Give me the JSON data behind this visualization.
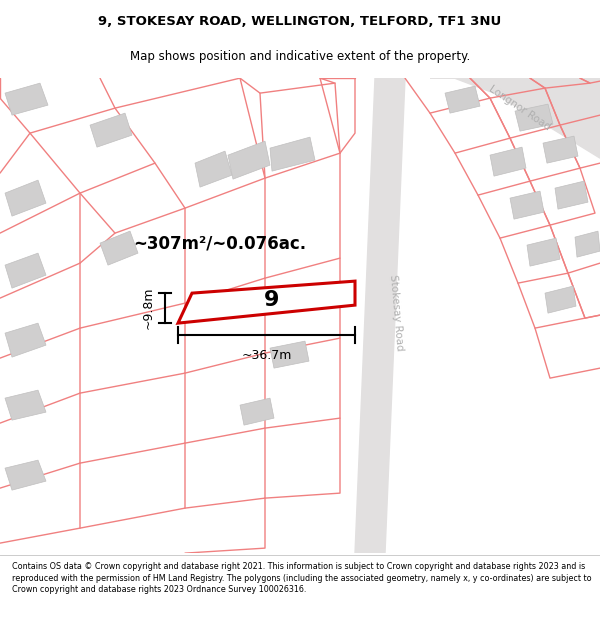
{
  "title": "9, STOKESAY ROAD, WELLINGTON, TELFORD, TF1 3NU",
  "subtitle": "Map shows position and indicative extent of the property.",
  "footer": "Contains OS data © Crown copyright and database right 2021. This information is subject to Crown copyright and database rights 2023 and is reproduced with the permission of HM Land Registry. The polygons (including the associated geometry, namely x, y co-ordinates) are subject to Crown copyright and database rights 2023 Ordnance Survey 100026316.",
  "bg_color": "#f7f5f5",
  "road_fill": "#e2e0e0",
  "building_fill": "#d0cfcf",
  "pink_line": "#f08080",
  "red_outline": "#cc0000",
  "area_text": "~307m²/~0.076ac.",
  "width_text": "~36.7m",
  "height_text": "~9.8m",
  "number_text": "9",
  "road_label_stokesay": "Stokesay Road",
  "road_label_longnor": "Longnor Road",
  "road_label_color": "#b0b0b0"
}
